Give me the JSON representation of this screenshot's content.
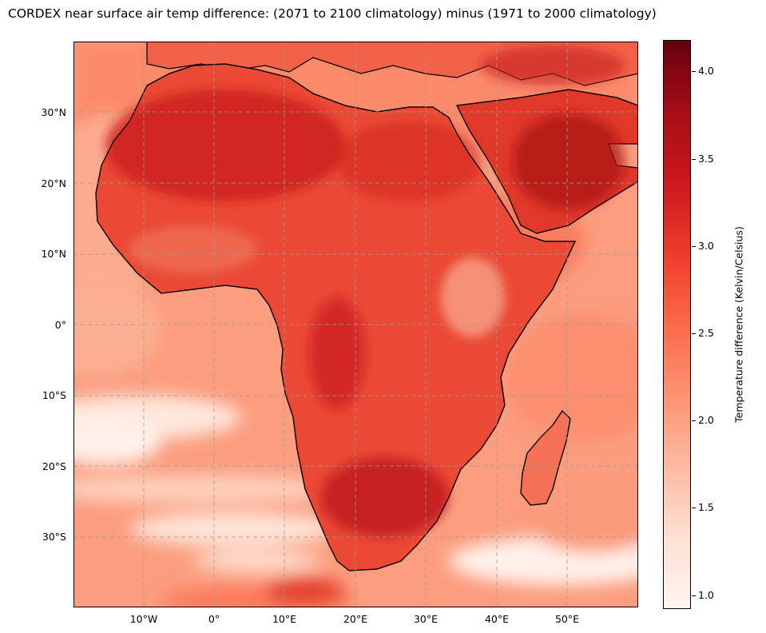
{
  "title": "CORDEX near surface air temp difference: (2071 to 2100 climatology) minus (1971 to 2000 climatology)",
  "map": {
    "lat_labels": [
      "30°N",
      "20°N",
      "10°N",
      "0°",
      "10°S",
      "20°S",
      "30°S"
    ],
    "lon_labels": [
      "10°W",
      "0°",
      "10°E",
      "20°E",
      "30°E",
      "40°E",
      "50°E"
    ],
    "gridlines": "dashed grey",
    "land_outline_color": "#000000"
  },
  "colorbar": {
    "label": "Temperature difference (Kelvin/Celsius)",
    "ticks": [
      "1.0",
      "1.5",
      "2.0",
      "2.5",
      "3.0",
      "3.5",
      "4.0"
    ],
    "min": 0.92,
    "max": 4.18,
    "colormap": [
      "#fff5f0",
      "#fee0d2",
      "#fcbba1",
      "#fc9272",
      "#fb6a4a",
      "#ef3b2c",
      "#cb181d",
      "#a50f15",
      "#67000d"
    ]
  }
}
